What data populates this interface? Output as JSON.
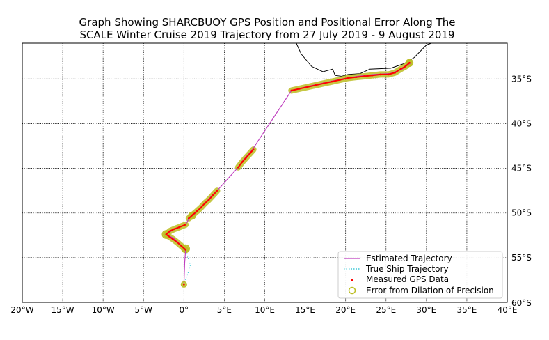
{
  "chart_data": {
    "type": "line",
    "title_lines": [
      "Graph Showing SHARCBUOY GPS Position and Positional Error Along The",
      "SCALE Winter Cruise 2019 Trajectory from 27 July 2019 - 9 August 2019"
    ],
    "xlim": [
      -20,
      40
    ],
    "ylim": [
      -60,
      -31
    ],
    "x_ticks": [
      {
        "value": -20,
        "label": "20°W"
      },
      {
        "value": -15,
        "label": "15°W"
      },
      {
        "value": -10,
        "label": "10°W"
      },
      {
        "value": -5,
        "label": "5°W"
      },
      {
        "value": 0,
        "label": "0°"
      },
      {
        "value": 5,
        "label": "5°E"
      },
      {
        "value": 10,
        "label": "10°E"
      },
      {
        "value": 15,
        "label": "15°E"
      },
      {
        "value": 20,
        "label": "20°E"
      },
      {
        "value": 25,
        "label": "25°E"
      },
      {
        "value": 30,
        "label": "30°E"
      },
      {
        "value": 35,
        "label": "35°E"
      },
      {
        "value": 40,
        "label": "40°E"
      }
    ],
    "y_ticks": [
      {
        "value": -35,
        "label": "35°S"
      },
      {
        "value": -40,
        "label": "40°S"
      },
      {
        "value": -45,
        "label": "45°S"
      },
      {
        "value": -50,
        "label": "50°S"
      },
      {
        "value": -55,
        "label": "55°S"
      },
      {
        "value": -60,
        "label": "60°S"
      }
    ],
    "grid": true,
    "legend_position": "bottom-right",
    "legend": [
      {
        "label": "Estimated Trajectory",
        "style": "line",
        "color": "#bf3fbf"
      },
      {
        "label": "True Ship Trajectory",
        "style": "dotted",
        "color": "#17becf"
      },
      {
        "label": "Measured GPS Data",
        "style": "point",
        "color": "#ff0000"
      },
      {
        "label": "Error from Dilation of Precision",
        "style": "circle",
        "color": "#bcbd22"
      }
    ],
    "coastline": [
      [
        13.9,
        -31.0
      ],
      [
        14.5,
        -32.2
      ],
      [
        15.8,
        -33.6
      ],
      [
        17.2,
        -34.2
      ],
      [
        18.4,
        -33.9
      ],
      [
        18.7,
        -34.6
      ],
      [
        19.5,
        -34.7
      ],
      [
        20.3,
        -34.5
      ],
      [
        21.8,
        -34.4
      ],
      [
        23.0,
        -33.9
      ],
      [
        25.6,
        -33.8
      ],
      [
        27.2,
        -33.3
      ],
      [
        28.5,
        -32.6
      ],
      [
        30.0,
        -31.2
      ],
      [
        30.6,
        -31.0
      ]
    ],
    "estimated_trajectory": {
      "lon": [
        0.0,
        0.1,
        0.2,
        0.0,
        -0.6,
        -1.3,
        -2.2,
        -1.2,
        0.2,
        0.7,
        1.2,
        2.4,
        3.4,
        4.3,
        6.6,
        7.4,
        8.4,
        13.3,
        15.5,
        17.5,
        19.5,
        21.5,
        23.5,
        25.5,
        27.0,
        27.7,
        28.1
      ],
      "lat": [
        -58.0,
        -55.5,
        -54.2,
        -54.0,
        -53.4,
        -52.8,
        -52.4,
        -51.8,
        -51.3,
        -50.5,
        -50.2,
        -49.1,
        -48.1,
        -47.3,
        -45.0,
        -44.0,
        -43.0,
        -36.3,
        -35.8,
        -35.4,
        -35.0,
        -34.7,
        -34.5,
        -34.4,
        -33.9,
        -33.4,
        -33.2
      ]
    },
    "true_ship_trajectory": {
      "lon": [
        0.0,
        0.2,
        0.6,
        0.8,
        0.5,
        0.3
      ],
      "lat": [
        -58.0,
        -57.4,
        -56.5,
        -55.8,
        -55.0,
        -54.2
      ]
    },
    "gps_segments": [
      {
        "lon": [
          0.0
        ],
        "lat": [
          -58.0
        ]
      },
      {
        "lon": [
          0.2,
          -0.3,
          -0.8,
          -1.4,
          -1.9,
          -2.2,
          -1.7,
          -1.2,
          -0.6,
          0.2
        ],
        "lat": [
          -54.1,
          -53.7,
          -53.3,
          -52.9,
          -52.6,
          -52.4,
          -52.0,
          -51.8,
          -51.6,
          -51.3
        ]
      },
      {
        "lon": [
          0.6,
          1.1,
          1.6,
          2.1,
          2.6,
          3.1,
          3.6,
          4.1
        ],
        "lat": [
          -50.6,
          -50.2,
          -49.8,
          -49.4,
          -48.9,
          -48.5,
          -48.0,
          -47.5
        ]
      },
      {
        "lon": [
          6.7,
          7.2,
          7.7,
          8.2,
          8.6
        ],
        "lat": [
          -44.9,
          -44.3,
          -43.8,
          -43.3,
          -42.9
        ]
      },
      {
        "lon": [
          13.3,
          14.3,
          15.3,
          16.3,
          17.3,
          18.3,
          19.3,
          20.3,
          21.3,
          22.3,
          23.3,
          24.3,
          25.3,
          26.1,
          26.8,
          27.4,
          27.9
        ],
        "lat": [
          -36.3,
          -36.1,
          -35.9,
          -35.7,
          -35.5,
          -35.3,
          -35.1,
          -34.9,
          -34.8,
          -34.7,
          -34.6,
          -34.5,
          -34.5,
          -34.3,
          -33.9,
          -33.6,
          -33.2
        ]
      }
    ],
    "error_circle_radius_deg": [
      {
        "lon": 0.0,
        "lat": -58.0,
        "r": 0.35
      },
      {
        "lon": 0.2,
        "lat": -54.0,
        "r": 0.5
      },
      {
        "lon": -2.2,
        "lat": -52.4,
        "r": 0.5
      },
      {
        "lon": 1.0,
        "lat": -50.3,
        "r": 0.45
      },
      {
        "lon": 27.9,
        "lat": -33.2,
        "r": 0.45
      }
    ]
  },
  "colors": {
    "estimated": "#bf3fbf",
    "true_ship": "#17becf",
    "gps": "#ff0000",
    "error": "#bcbd22",
    "coast": "#000000"
  }
}
